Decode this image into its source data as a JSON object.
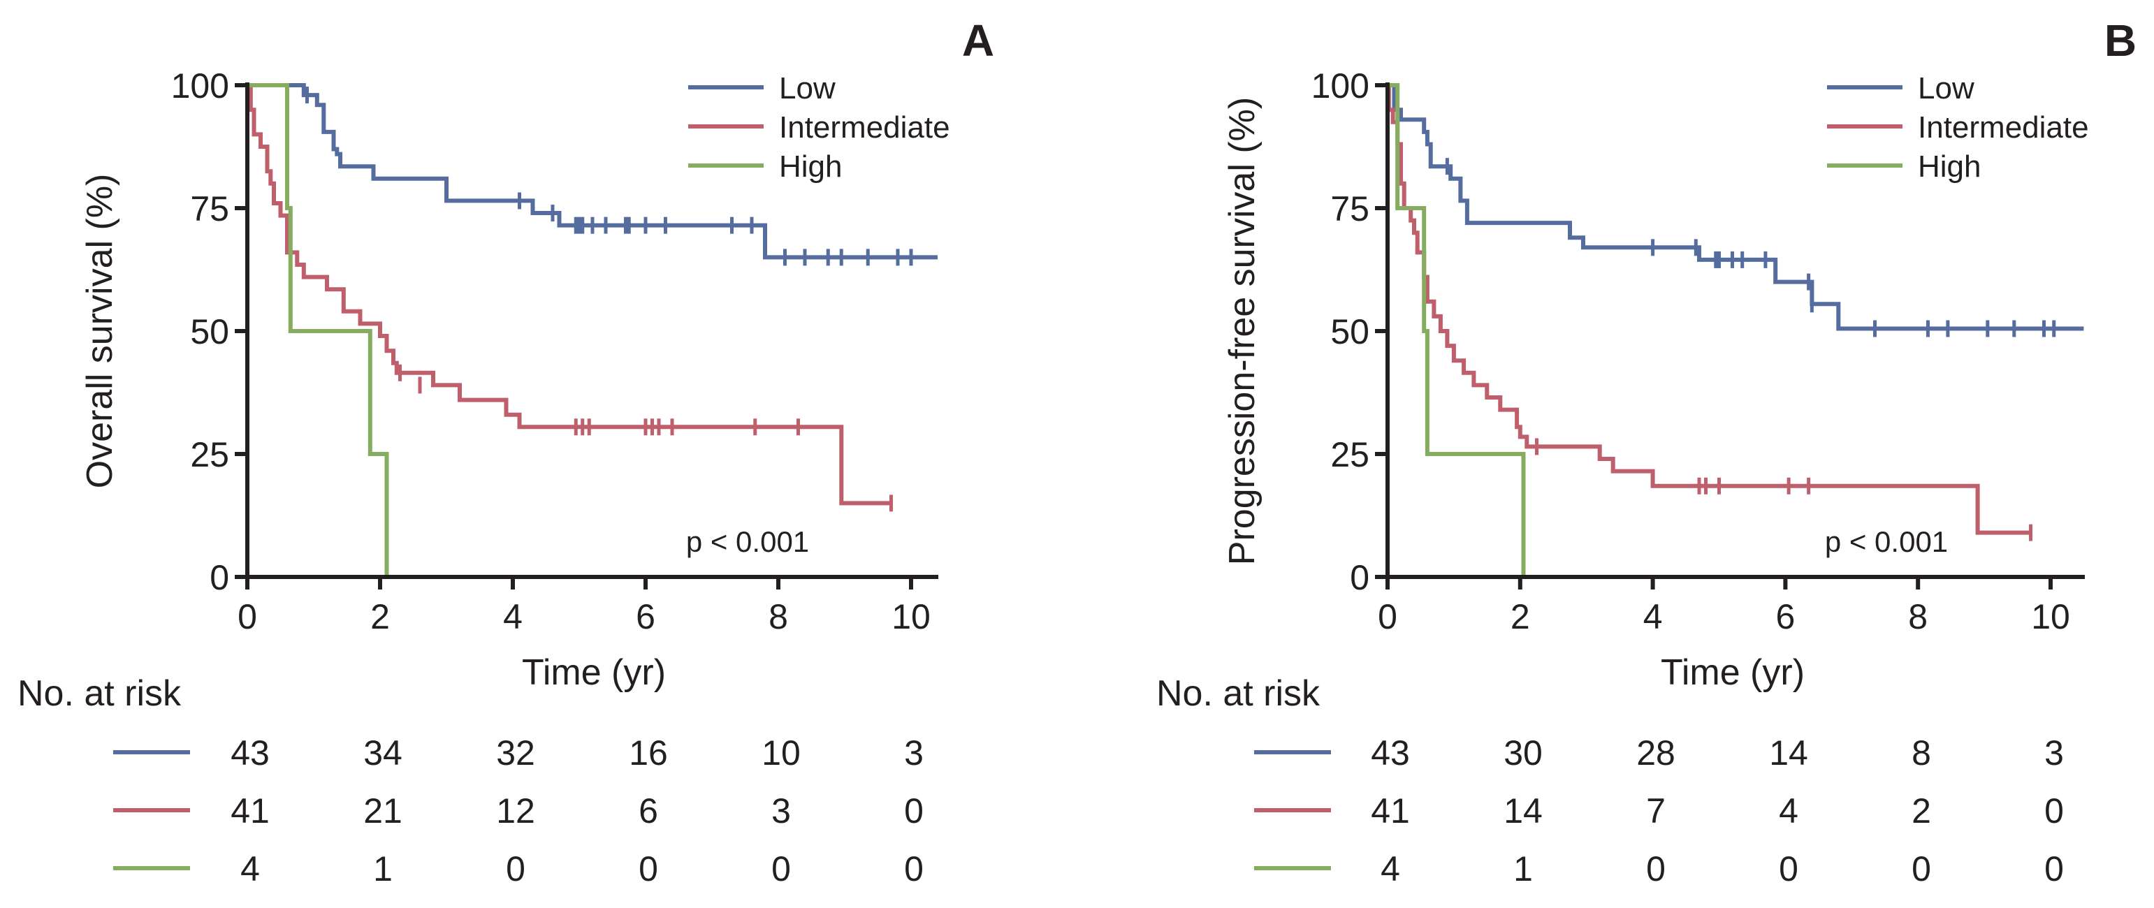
{
  "chart_data": [
    {
      "type": "line",
      "subtype": "kaplan-meier",
      "panel_label": "A",
      "title": "",
      "xlabel": "Time (yr)",
      "ylabel": "Overall survival (%)",
      "xlim": [
        0,
        10.4
      ],
      "ylim": [
        0,
        100
      ],
      "xticks": [
        0,
        2,
        4,
        6,
        8,
        10
      ],
      "yticks": [
        0,
        25,
        50,
        75,
        100
      ],
      "legend": {
        "position": "top-right",
        "entries": [
          "Low",
          "Intermediate",
          "High"
        ]
      },
      "annotation": "p < 0.001",
      "series": [
        {
          "name": "Low",
          "color": "#546c9e",
          "steps": [
            [
              0,
              100
            ],
            [
              0.85,
              100
            ],
            [
              0.85,
              98
            ],
            [
              1.05,
              98
            ],
            [
              1.05,
              96
            ],
            [
              1.15,
              96
            ],
            [
              1.15,
              90.5
            ],
            [
              1.3,
              90.5
            ],
            [
              1.3,
              87
            ],
            [
              1.35,
              87
            ],
            [
              1.35,
              86
            ],
            [
              1.4,
              86
            ],
            [
              1.4,
              83.5
            ],
            [
              1.9,
              83.5
            ],
            [
              1.9,
              81
            ],
            [
              3.0,
              81
            ],
            [
              3.0,
              76.5
            ],
            [
              4.3,
              76.5
            ],
            [
              4.3,
              74
            ],
            [
              4.7,
              74
            ],
            [
              4.7,
              71.5
            ],
            [
              7.8,
              71.5
            ],
            [
              7.8,
              65
            ],
            [
              10.4,
              65
            ]
          ],
          "censored": [
            [
              0.9,
              98
            ],
            [
              4.1,
              76.5
            ],
            [
              4.6,
              74
            ],
            [
              4.95,
              71.5
            ],
            [
              5.0,
              71.5
            ],
            [
              5.05,
              71.5
            ],
            [
              5.2,
              71.5
            ],
            [
              5.4,
              71.5
            ],
            [
              5.7,
              71.5
            ],
            [
              5.75,
              71.5
            ],
            [
              6.0,
              71.5
            ],
            [
              6.3,
              71.5
            ],
            [
              7.3,
              71.5
            ],
            [
              7.6,
              71.5
            ],
            [
              8.1,
              65
            ],
            [
              8.4,
              65
            ],
            [
              8.75,
              65
            ],
            [
              8.95,
              65
            ],
            [
              9.35,
              65
            ],
            [
              9.8,
              65
            ],
            [
              10.0,
              65
            ]
          ]
        },
        {
          "name": "Intermediate",
          "color": "#bf5f6b",
          "steps": [
            [
              0,
              100
            ],
            [
              0.05,
              100
            ],
            [
              0.05,
              95
            ],
            [
              0.1,
              95
            ],
            [
              0.1,
              90
            ],
            [
              0.2,
              90
            ],
            [
              0.2,
              87.5
            ],
            [
              0.3,
              87.5
            ],
            [
              0.3,
              82.5
            ],
            [
              0.35,
              82.5
            ],
            [
              0.35,
              80
            ],
            [
              0.4,
              80
            ],
            [
              0.4,
              76
            ],
            [
              0.5,
              76
            ],
            [
              0.5,
              73.5
            ],
            [
              0.6,
              73.5
            ],
            [
              0.6,
              66
            ],
            [
              0.75,
              66
            ],
            [
              0.75,
              63.5
            ],
            [
              0.85,
              63.5
            ],
            [
              0.85,
              61
            ],
            [
              1.2,
              61
            ],
            [
              1.2,
              58.5
            ],
            [
              1.45,
              58.5
            ],
            [
              1.45,
              54
            ],
            [
              1.7,
              54
            ],
            [
              1.7,
              51.5
            ],
            [
              2.0,
              51.5
            ],
            [
              2.0,
              49
            ],
            [
              2.1,
              49
            ],
            [
              2.1,
              46
            ],
            [
              2.2,
              46
            ],
            [
              2.2,
              43.5
            ],
            [
              2.25,
              43.5
            ],
            [
              2.25,
              41.5
            ],
            [
              2.8,
              41.5
            ],
            [
              2.8,
              39
            ],
            [
              3.2,
              39
            ],
            [
              3.2,
              36
            ],
            [
              3.9,
              36
            ],
            [
              3.9,
              33
            ],
            [
              4.1,
              33
            ],
            [
              4.1,
              30.5
            ],
            [
              8.95,
              30.5
            ],
            [
              8.95,
              15
            ],
            [
              9.7,
              15
            ]
          ],
          "censored": [
            [
              2.3,
              41.5
            ],
            [
              2.6,
              39
            ],
            [
              4.95,
              30.5
            ],
            [
              5.05,
              30.5
            ],
            [
              5.15,
              30.5
            ],
            [
              6.0,
              30.5
            ],
            [
              6.1,
              30.5
            ],
            [
              6.2,
              30.5
            ],
            [
              6.4,
              30.5
            ],
            [
              7.65,
              30.5
            ],
            [
              8.3,
              30.5
            ],
            [
              9.7,
              15
            ]
          ]
        },
        {
          "name": "High",
          "color": "#86ad5f",
          "steps": [
            [
              0,
              100
            ],
            [
              0.6,
              100
            ],
            [
              0.6,
              75
            ],
            [
              0.65,
              75
            ],
            [
              0.65,
              50
            ],
            [
              1.85,
              50
            ],
            [
              1.85,
              25
            ],
            [
              2.1,
              25
            ],
            [
              2.1,
              0
            ]
          ],
          "censored": []
        }
      ],
      "at_risk": {
        "label": "No. at risk",
        "times": [
          0,
          2,
          4,
          6,
          8,
          10
        ],
        "rows": [
          {
            "name": "Low",
            "values": [
              43,
              34,
              32,
              16,
              10,
              3
            ]
          },
          {
            "name": "Intermediate",
            "values": [
              41,
              21,
              12,
              6,
              3,
              0
            ]
          },
          {
            "name": "High",
            "values": [
              4,
              1,
              0,
              0,
              0,
              0
            ]
          }
        ]
      }
    },
    {
      "type": "line",
      "subtype": "kaplan-meier",
      "panel_label": "B",
      "title": "",
      "xlabel": "Time (yr)",
      "ylabel": "Progression-free survival (%)",
      "xlim": [
        0,
        10.5
      ],
      "ylim": [
        0,
        100
      ],
      "xticks": [
        0,
        2,
        4,
        6,
        8,
        10
      ],
      "yticks": [
        0,
        25,
        50,
        75,
        100
      ],
      "legend": {
        "position": "top-right",
        "entries": [
          "Low",
          "Intermediate",
          "High"
        ]
      },
      "annotation": "p < 0.001",
      "series": [
        {
          "name": "Low",
          "color": "#546c9e",
          "steps": [
            [
              0,
              100
            ],
            [
              0.1,
              100
            ],
            [
              0.1,
              95
            ],
            [
              0.2,
              95
            ],
            [
              0.2,
              93
            ],
            [
              0.55,
              93
            ],
            [
              0.55,
              90.5
            ],
            [
              0.6,
              90.5
            ],
            [
              0.6,
              88
            ],
            [
              0.65,
              88
            ],
            [
              0.65,
              83.5
            ],
            [
              0.95,
              83.5
            ],
            [
              0.95,
              81
            ],
            [
              1.1,
              81
            ],
            [
              1.1,
              76.5
            ],
            [
              1.2,
              76.5
            ],
            [
              1.2,
              72
            ],
            [
              2.75,
              72
            ],
            [
              2.75,
              69
            ],
            [
              2.95,
              69
            ],
            [
              2.95,
              67
            ],
            [
              4.7,
              67
            ],
            [
              4.7,
              64.5
            ],
            [
              5.85,
              64.5
            ],
            [
              5.85,
              60
            ],
            [
              6.4,
              60
            ],
            [
              6.4,
              55.5
            ],
            [
              6.8,
              55.5
            ],
            [
              6.8,
              50.5
            ],
            [
              10.5,
              50.5
            ]
          ],
          "censored": [
            [
              0.9,
              83.5
            ],
            [
              4.0,
              67
            ],
            [
              4.65,
              67
            ],
            [
              4.95,
              64.5
            ],
            [
              5.0,
              64.5
            ],
            [
              5.2,
              64.5
            ],
            [
              5.35,
              64.5
            ],
            [
              5.7,
              64.5
            ],
            [
              6.35,
              60
            ],
            [
              6.4,
              55.5
            ],
            [
              7.35,
              50.5
            ],
            [
              8.15,
              50.5
            ],
            [
              8.45,
              50.5
            ],
            [
              9.05,
              50.5
            ],
            [
              9.45,
              50.5
            ],
            [
              9.9,
              50.5
            ],
            [
              10.05,
              50.5
            ]
          ]
        },
        {
          "name": "Intermediate",
          "color": "#bf5f6b",
          "steps": [
            [
              0,
              100
            ],
            [
              0.02,
              100
            ],
            [
              0.02,
              95
            ],
            [
              0.08,
              95
            ],
            [
              0.08,
              92.5
            ],
            [
              0.15,
              92.5
            ],
            [
              0.15,
              88
            ],
            [
              0.2,
              88
            ],
            [
              0.2,
              80
            ],
            [
              0.25,
              80
            ],
            [
              0.25,
              75
            ],
            [
              0.35,
              75
            ],
            [
              0.35,
              72.5
            ],
            [
              0.4,
              72.5
            ],
            [
              0.4,
              70
            ],
            [
              0.45,
              70
            ],
            [
              0.45,
              66
            ],
            [
              0.55,
              66
            ],
            [
              0.55,
              61
            ],
            [
              0.6,
              61
            ],
            [
              0.6,
              56
            ],
            [
              0.7,
              56
            ],
            [
              0.7,
              53
            ],
            [
              0.8,
              53
            ],
            [
              0.8,
              50
            ],
            [
              0.9,
              50
            ],
            [
              0.9,
              47
            ],
            [
              1.0,
              47
            ],
            [
              1.0,
              44
            ],
            [
              1.15,
              44
            ],
            [
              1.15,
              41.5
            ],
            [
              1.3,
              41.5
            ],
            [
              1.3,
              39
            ],
            [
              1.5,
              39
            ],
            [
              1.5,
              36.5
            ],
            [
              1.7,
              36.5
            ],
            [
              1.7,
              34
            ],
            [
              1.95,
              34
            ],
            [
              1.95,
              30.5
            ],
            [
              2.0,
              30.5
            ],
            [
              2.0,
              28.5
            ],
            [
              2.1,
              28.5
            ],
            [
              2.1,
              26.5
            ],
            [
              3.2,
              26.5
            ],
            [
              3.2,
              24
            ],
            [
              3.4,
              24
            ],
            [
              3.4,
              21.5
            ],
            [
              4.0,
              21.5
            ],
            [
              4.0,
              18.5
            ],
            [
              8.9,
              18.5
            ],
            [
              8.9,
              9
            ],
            [
              9.7,
              9
            ]
          ],
          "censored": [
            [
              2.25,
              26.5
            ],
            [
              4.7,
              18.5
            ],
            [
              4.8,
              18.5
            ],
            [
              5.0,
              18.5
            ],
            [
              6.05,
              18.5
            ],
            [
              6.35,
              18.5
            ],
            [
              9.7,
              9
            ]
          ]
        },
        {
          "name": "High",
          "color": "#86ad5f",
          "steps": [
            [
              0,
              100
            ],
            [
              0.15,
              100
            ],
            [
              0.15,
              75
            ],
            [
              0.55,
              75
            ],
            [
              0.55,
              50
            ],
            [
              0.6,
              50
            ],
            [
              0.6,
              25
            ],
            [
              2.05,
              25
            ],
            [
              2.05,
              0
            ]
          ],
          "censored": []
        }
      ],
      "at_risk": {
        "label": "No. at risk",
        "times": [
          0,
          2,
          4,
          6,
          8,
          10
        ],
        "rows": [
          {
            "name": "Low",
            "values": [
              43,
              30,
              28,
              14,
              8,
              3
            ]
          },
          {
            "name": "Intermediate",
            "values": [
              41,
              14,
              7,
              4,
              2,
              0
            ]
          },
          {
            "name": "High",
            "values": [
              4,
              1,
              0,
              0,
              0,
              0
            ]
          }
        ]
      }
    }
  ]
}
